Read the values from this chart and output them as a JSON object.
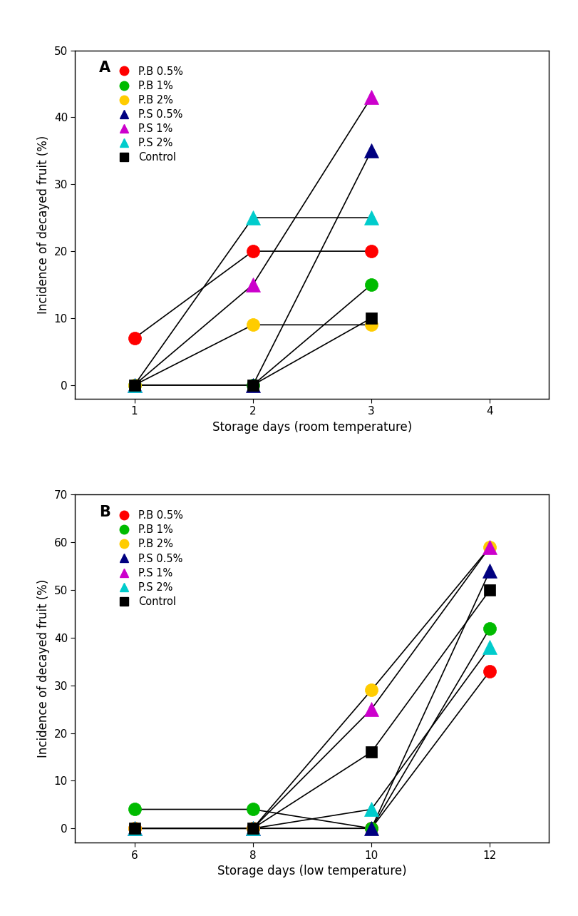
{
  "panel_A": {
    "xlabel": "Storage days (room temperature)",
    "ylabel": "Incidence of decayed fruit (%)",
    "label": "A",
    "xlim": [
      0.5,
      4.5
    ],
    "ylim": [
      -2,
      50
    ],
    "xticks": [
      1,
      2,
      3,
      4
    ],
    "yticks": [
      0,
      10,
      20,
      30,
      40,
      50
    ],
    "series": [
      {
        "label": "P.B 0.5%",
        "color": "#ff0000",
        "marker": "o",
        "markersize": 13,
        "x": [
          1,
          2,
          3
        ],
        "y": [
          7,
          20,
          20
        ]
      },
      {
        "label": "P.B 1%",
        "color": "#00bb00",
        "marker": "o",
        "markersize": 13,
        "x": [
          1,
          2,
          3
        ],
        "y": [
          0,
          0,
          15
        ]
      },
      {
        "label": "P.B 2%",
        "color": "#ffcc00",
        "marker": "o",
        "markersize": 13,
        "x": [
          1,
          2,
          3
        ],
        "y": [
          0,
          9,
          9
        ]
      },
      {
        "label": "P.S 0.5%",
        "color": "#000080",
        "marker": "^",
        "markersize": 14,
        "x": [
          1,
          2,
          3
        ],
        "y": [
          0,
          0,
          35
        ]
      },
      {
        "label": "P.S 1%",
        "color": "#cc00cc",
        "marker": "^",
        "markersize": 14,
        "x": [
          1,
          2,
          3
        ],
        "y": [
          0,
          15,
          43
        ]
      },
      {
        "label": "P.S 2%",
        "color": "#00cccc",
        "marker": "^",
        "markersize": 14,
        "x": [
          1,
          2,
          3
        ],
        "y": [
          0,
          25,
          25
        ]
      },
      {
        "label": "Control",
        "color": "#000000",
        "marker": "s",
        "markersize": 12,
        "x": [
          1,
          2,
          3
        ],
        "y": [
          0,
          0,
          10
        ]
      }
    ]
  },
  "panel_B": {
    "xlabel": "Storage days (low temperature)",
    "ylabel": "Incidence of decayed fruit (%)",
    "label": "B",
    "xlim": [
      5,
      13
    ],
    "ylim": [
      -3,
      70
    ],
    "xticks": [
      6,
      8,
      10,
      12
    ],
    "yticks": [
      0,
      10,
      20,
      30,
      40,
      50,
      60,
      70
    ],
    "series": [
      {
        "label": "P.B 0.5%",
        "color": "#ff0000",
        "marker": "o",
        "markersize": 13,
        "x": [
          6,
          8,
          10,
          12
        ],
        "y": [
          0,
          0,
          0,
          33
        ]
      },
      {
        "label": "P.B 1%",
        "color": "#00bb00",
        "marker": "o",
        "markersize": 13,
        "x": [
          6,
          8,
          10,
          12
        ],
        "y": [
          4,
          4,
          0,
          42
        ]
      },
      {
        "label": "P.B 2%",
        "color": "#ffcc00",
        "marker": "o",
        "markersize": 13,
        "x": [
          6,
          8,
          10,
          12
        ],
        "y": [
          0,
          0,
          29,
          59
        ]
      },
      {
        "label": "P.S 0.5%",
        "color": "#000080",
        "marker": "^",
        "markersize": 14,
        "x": [
          6,
          8,
          10,
          12
        ],
        "y": [
          0,
          0,
          0,
          54
        ]
      },
      {
        "label": "P.S 1%",
        "color": "#cc00cc",
        "marker": "^",
        "markersize": 14,
        "x": [
          6,
          8,
          10,
          12
        ],
        "y": [
          0,
          0,
          25,
          59
        ]
      },
      {
        "label": "P.S 2%",
        "color": "#00cccc",
        "marker": "^",
        "markersize": 14,
        "x": [
          6,
          8,
          10,
          12
        ],
        "y": [
          0,
          0,
          4,
          38
        ]
      },
      {
        "label": "Control",
        "color": "#000000",
        "marker": "s",
        "markersize": 12,
        "x": [
          6,
          8,
          10,
          12
        ],
        "y": [
          0,
          0,
          16,
          50
        ]
      }
    ]
  },
  "background_color": "#ffffff",
  "line_color": "#000000",
  "line_width": 1.2,
  "legend_fontsize": 10.5,
  "axis_fontsize": 12,
  "tick_fontsize": 11,
  "label_fontsize": 15
}
